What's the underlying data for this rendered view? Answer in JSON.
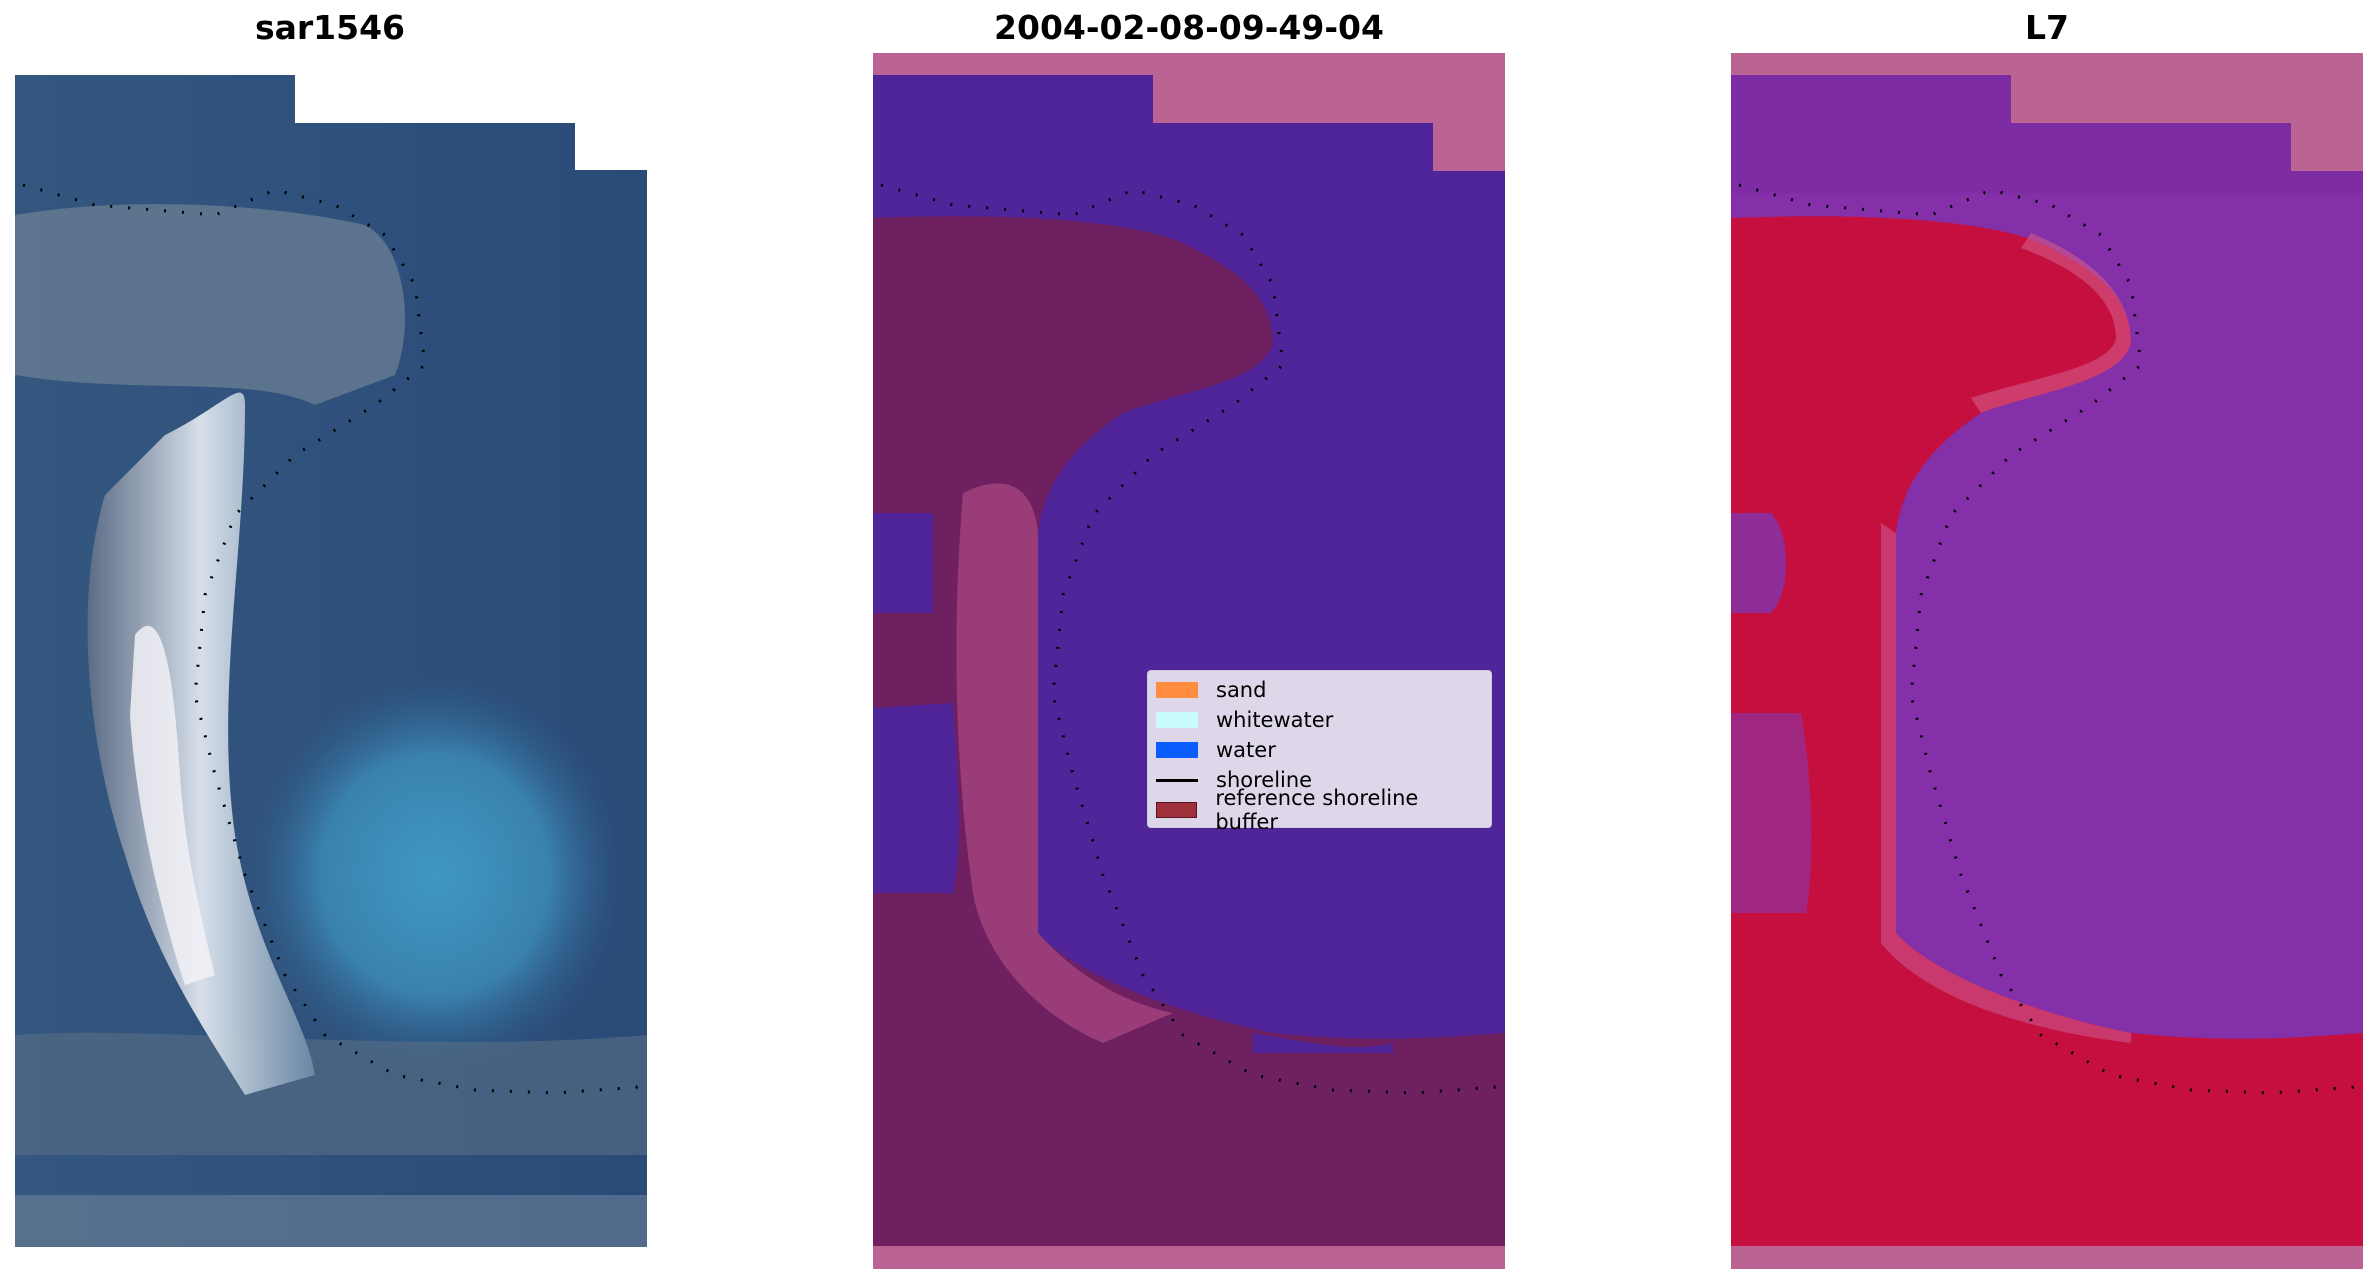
{
  "panels": [
    {
      "title": "sar1546"
    },
    {
      "title": "2004-02-08-09-49-04"
    },
    {
      "title": "L7"
    }
  ],
  "legend": {
    "items": [
      {
        "label": "sand",
        "kind": "patch",
        "color": "#ff8c3f"
      },
      {
        "label": "whitewater",
        "kind": "patch",
        "color": "#c9fbff"
      },
      {
        "label": "water",
        "kind": "patch",
        "color": "#0b5cff"
      },
      {
        "label": "shoreline",
        "kind": "line",
        "color": "#000000"
      },
      {
        "label": "reference shoreline buffer",
        "kind": "patch",
        "color": "#a0303a"
      }
    ]
  },
  "colors": {
    "rgb_deep_water": "#2a4a78",
    "rgb_shallow_water": "#3d8fb8",
    "rgb_whitewater": "#e4ecf4",
    "class_water": "#51259a",
    "class_buffer": "#6e2060",
    "class_nodata": "#bb6494",
    "mndwi_land": "#c5103f",
    "mndwi_water": "#8430a8",
    "shoreline": "#000000"
  }
}
